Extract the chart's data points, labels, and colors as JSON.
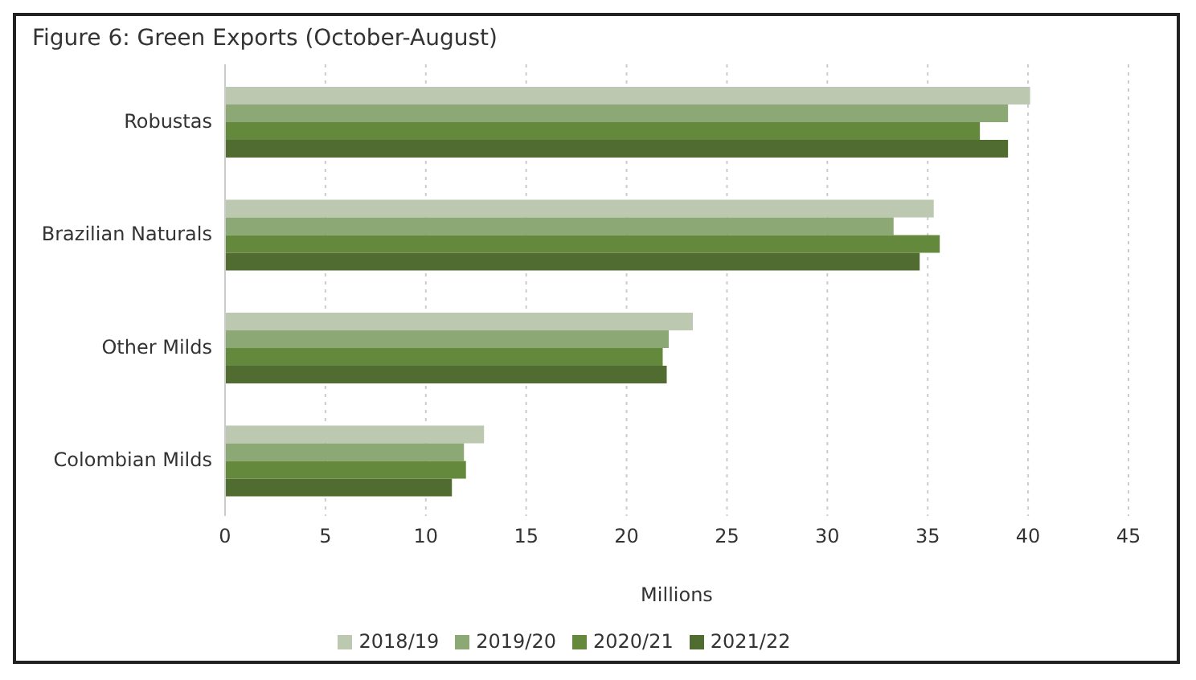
{
  "chart_data": {
    "type": "bar",
    "orientation": "horizontal",
    "title": "Figure 6: Green Exports (October-August)",
    "xlabel": "Millions",
    "categories": [
      "Robustas",
      "Brazilian Naturals",
      "Other Milds",
      "Colombian Milds"
    ],
    "series": [
      {
        "name": "2018/19",
        "color": "#bcc8b0",
        "values": [
          40.1,
          35.3,
          23.3,
          12.9
        ]
      },
      {
        "name": "2019/20",
        "color": "#8ca874",
        "values": [
          39.0,
          33.3,
          22.1,
          11.9
        ]
      },
      {
        "name": "2020/21",
        "color": "#64883c",
        "values": [
          37.6,
          35.6,
          21.8,
          12.0
        ]
      },
      {
        "name": "2021/22",
        "color": "#506c30",
        "values": [
          39.0,
          34.6,
          22.0,
          11.3
        ]
      }
    ],
    "xlim": [
      0,
      45
    ],
    "xticks": [
      0,
      5,
      10,
      15,
      20,
      25,
      30,
      35,
      40,
      45
    ],
    "grid": "x",
    "legend": "bottom"
  }
}
